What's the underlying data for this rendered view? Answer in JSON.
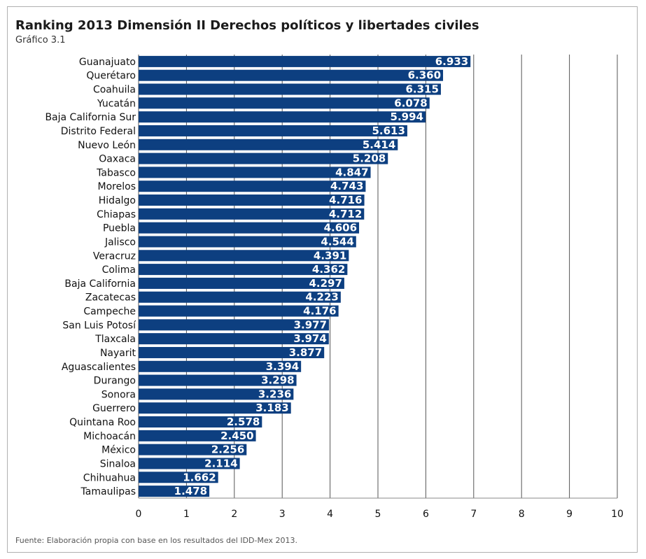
{
  "title": "Ranking 2013 Dimensión II Derechos políticos y libertades civiles",
  "subtitle": "Gráfico 3.1",
  "footer": "Fuente: Elaboración propia con base en los resultados del IDD-Mex 2013.",
  "colors": {
    "bar": "#0d3f80",
    "grid": "#555555"
  },
  "chart_data": {
    "type": "bar",
    "orientation": "horizontal",
    "categories": [
      "Guanajuato",
      "Querétaro",
      "Coahuila",
      "Yucatán",
      "Baja California Sur",
      "Distrito Federal",
      "Nuevo León",
      "Oaxaca",
      "Tabasco",
      "Morelos",
      "Hidalgo",
      "Chiapas",
      "Puebla",
      "Jalisco",
      "Veracruz",
      "Colima",
      "Baja California",
      "Zacatecas",
      "Campeche",
      "San Luis Potosí",
      "Tlaxcala",
      "Nayarit",
      "Aguascalientes",
      "Durango",
      "Sonora",
      "Guerrero",
      "Quintana Roo",
      "Michoacán",
      "México",
      "Sinaloa",
      "Chihuahua",
      "Tamaulipas"
    ],
    "values": [
      6.933,
      6.36,
      6.315,
      6.078,
      5.994,
      5.613,
      5.414,
      5.208,
      4.847,
      4.743,
      4.716,
      4.712,
      4.606,
      4.544,
      4.391,
      4.362,
      4.297,
      4.223,
      4.176,
      3.977,
      3.974,
      3.877,
      3.394,
      3.298,
      3.236,
      3.183,
      2.578,
      2.45,
      2.256,
      2.114,
      1.662,
      1.478
    ],
    "value_labels": [
      "6.933",
      "6.360",
      "6.315",
      "6.078",
      "5.994",
      "5.613",
      "5.414",
      "5.208",
      "4.847",
      "4.743",
      "4.716",
      "4.712",
      "4.606",
      "4.544",
      "4.391",
      "4.362",
      "4.297",
      "4.223",
      "4.176",
      "3.977",
      "3.974",
      "3.877",
      "3.394",
      "3.298",
      "3.236",
      "3.183",
      "2.578",
      "2.450",
      "2.256",
      "2.114",
      "1.662",
      "1.478"
    ],
    "xlim": [
      0,
      10
    ],
    "xticks": [
      0,
      1,
      2,
      3,
      4,
      5,
      6,
      7,
      8,
      9,
      10
    ],
    "grid": true,
    "legend": "none"
  }
}
